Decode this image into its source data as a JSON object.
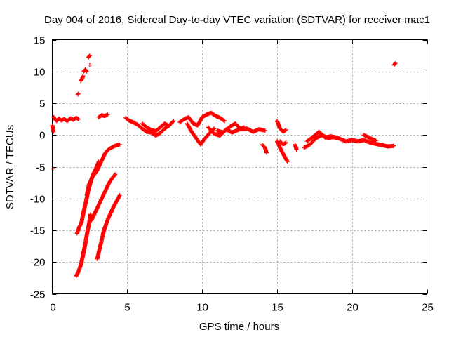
{
  "chart_data": {
    "type": "scatter",
    "title": "Day 004 of 2016, Sidereal Day-to-day VTEC variation (SDTVAR) for receiver mac1",
    "xlabel": "GPS time / hours",
    "ylabel": "SDTVAR / TECUs",
    "xlim": [
      0,
      25
    ],
    "ylim": [
      -25,
      15
    ],
    "xticks": [
      0,
      5,
      10,
      15,
      20,
      25
    ],
    "yticks": [
      -25,
      -20,
      -15,
      -10,
      -5,
      0,
      5,
      10,
      15
    ],
    "grid": true,
    "marker": "+",
    "color": "#ff0000",
    "series": [
      {
        "name": "SDTVAR",
        "segments": [
          {
            "x": [
              0.0,
              0.08
            ],
            "y": [
              1.5,
              0.5
            ]
          },
          {
            "x": [
              0.1,
              0.2,
              0.3,
              0.45,
              0.6,
              0.8,
              1.0,
              1.2,
              1.4,
              1.6,
              1.75
            ],
            "y": [
              2.8,
              2.4,
              2.2,
              2.6,
              2.3,
              2.5,
              2.2,
              2.6,
              2.4,
              2.7,
              2.5
            ]
          },
          {
            "x": [
              0.05
            ],
            "y": [
              -5.3
            ]
          },
          {
            "x": [
              1.7,
              1.75
            ],
            "y": [
              6.4,
              6.5
            ]
          },
          {
            "x": [
              1.9,
              2.0,
              2.05
            ],
            "y": [
              8.5,
              8.9,
              9.3
            ]
          },
          {
            "x": [
              2.1,
              2.2,
              2.3
            ],
            "y": [
              10.0,
              10.3,
              10.0
            ]
          },
          {
            "x": [
              2.4,
              2.5
            ],
            "y": [
              12.2,
              12.5
            ]
          },
          {
            "x": [
              2.5
            ],
            "y": [
              11.0
            ]
          },
          {
            "x": [
              1.6,
              1.75,
              1.9,
              2.0,
              2.1,
              2.2,
              2.3,
              2.45,
              2.55
            ],
            "y": [
              -22.2,
              -21.5,
              -20.5,
              -19.5,
              -18.3,
              -17.2,
              -15.8,
              -14.0,
              -12.5
            ]
          },
          {
            "x": [
              1.65,
              1.8,
              1.95,
              2.1,
              2.25,
              2.4,
              2.55,
              2.7,
              2.85,
              3.0,
              3.1
            ],
            "y": [
              -15.5,
              -14.5,
              -13.8,
              -12.0,
              -10.5,
              -8.8,
              -7.5,
              -6.3,
              -5.6,
              -4.8,
              -4.2
            ]
          },
          {
            "x": [
              2.3,
              2.45,
              2.6,
              2.75,
              2.9,
              3.05,
              3.2,
              3.35,
              3.5,
              3.65,
              3.8,
              3.95,
              4.1,
              4.3,
              4.5
            ],
            "y": [
              -9.5,
              -7.8,
              -7.0,
              -6.3,
              -6.0,
              -5.3,
              -4.5,
              -3.8,
              -3.0,
              -2.5,
              -2.2,
              -2.0,
              -1.8,
              -1.6,
              -1.5
            ]
          },
          {
            "x": [
              2.6,
              2.8,
              3.0,
              3.2,
              3.4,
              3.6,
              3.8,
              4.0,
              4.2
            ],
            "y": [
              -13.5,
              -12.5,
              -11.5,
              -10.5,
              -9.5,
              -8.5,
              -7.5,
              -6.8,
              -6.2
            ]
          },
          {
            "x": [
              3.0,
              3.15,
              3.3,
              3.45,
              3.6,
              3.75,
              3.9,
              4.05,
              4.2,
              4.35,
              4.5
            ],
            "y": [
              -19.5,
              -18.0,
              -16.5,
              -15.0,
              -14.0,
              -13.0,
              -12.3,
              -11.5,
              -10.8,
              -10.2,
              -9.5
            ]
          },
          {
            "x": [
              3.1,
              3.3,
              3.5,
              3.7
            ],
            "y": [
              2.8,
              3.1,
              3.0,
              3.2
            ]
          },
          {
            "x": [
              4.9,
              5.1,
              5.4,
              5.7,
              6.0,
              6.3,
              6.6,
              6.9,
              7.2,
              7.5,
              7.8,
              8.1
            ],
            "y": [
              2.7,
              2.3,
              2.0,
              1.6,
              1.0,
              0.5,
              0.4,
              -0.1,
              0.3,
              1.0,
              1.5,
              2.2
            ]
          },
          {
            "x": [
              6.0,
              6.3,
              6.6,
              6.9,
              7.2,
              7.5,
              7.8
            ],
            "y": [
              1.8,
              1.2,
              0.8,
              0.6,
              1.2,
              1.8,
              1.4
            ]
          },
          {
            "x": [
              8.5,
              8.8,
              9.1,
              9.4,
              9.7,
              10.0,
              10.3,
              10.6,
              10.9,
              11.2,
              11.5
            ],
            "y": [
              2.0,
              2.5,
              2.8,
              1.8,
              1.5,
              2.8,
              3.2,
              3.5,
              3.0,
              2.7,
              2.2
            ]
          },
          {
            "x": [
              9.0,
              9.3,
              9.6,
              9.9,
              10.2,
              10.5,
              10.8
            ],
            "y": [
              1.8,
              0.5,
              -0.5,
              -1.5,
              -0.5,
              0.3,
              1.0
            ]
          },
          {
            "x": [
              11.0,
              11.4,
              11.8,
              12.2,
              12.6,
              13.0,
              13.4,
              13.8,
              14.2
            ],
            "y": [
              0.7,
              0.4,
              1.2,
              1.8,
              0.9,
              1.0,
              0.5,
              0.9,
              0.7
            ]
          },
          {
            "x": [
              10.4,
              10.8,
              11.2,
              11.6,
              12.0,
              12.4,
              12.8
            ],
            "y": [
              1.2,
              0.2,
              -0.1,
              0.9,
              0.4,
              0.8,
              1.2
            ]
          },
          {
            "x": [
              14.0,
              14.2,
              14.3
            ],
            "y": [
              -1.5,
              -2.0,
              -2.8
            ]
          },
          {
            "x": [
              15.0,
              15.2,
              15.4,
              15.6
            ],
            "y": [
              2.2,
              1.0,
              0.5,
              0.8
            ]
          },
          {
            "x": [
              15.0,
              15.3,
              15.6,
              15.7
            ],
            "y": [
              -1.0,
              -2.5,
              -3.8,
              -4.2
            ]
          },
          {
            "x": [
              15.2,
              15.4,
              15.6
            ],
            "y": [
              -1.0,
              -1.5,
              -1.2
            ]
          },
          {
            "x": [
              16.2,
              16.3
            ],
            "y": [
              -1.5,
              -2.3
            ]
          },
          {
            "x": [
              16.8,
              17.2,
              17.6,
              18.0,
              18.4,
              18.8,
              19.2,
              19.6,
              20.0,
              20.4,
              20.8,
              21.2,
              21.6,
              22.0,
              22.4,
              22.8
            ],
            "y": [
              -2.0,
              -1.5,
              -0.5,
              0.0,
              -0.5,
              -0.3,
              -0.6,
              -1.0,
              -0.8,
              -1.0,
              -0.8,
              -1.2,
              -1.4,
              -1.6,
              -1.8,
              -1.7
            ]
          },
          {
            "x": [
              17.0,
              17.4,
              17.8,
              18.2,
              18.6,
              19.0
            ],
            "y": [
              -1.0,
              -0.3,
              0.5,
              -0.4,
              -0.2,
              -0.5
            ]
          },
          {
            "x": [
              20.8,
              21.2,
              21.6
            ],
            "y": [
              0.0,
              -0.5,
              -0.9
            ]
          },
          {
            "x": [
              22.8,
              22.9
            ],
            "y": [
              11.0,
              11.3
            ]
          }
        ]
      }
    ]
  }
}
